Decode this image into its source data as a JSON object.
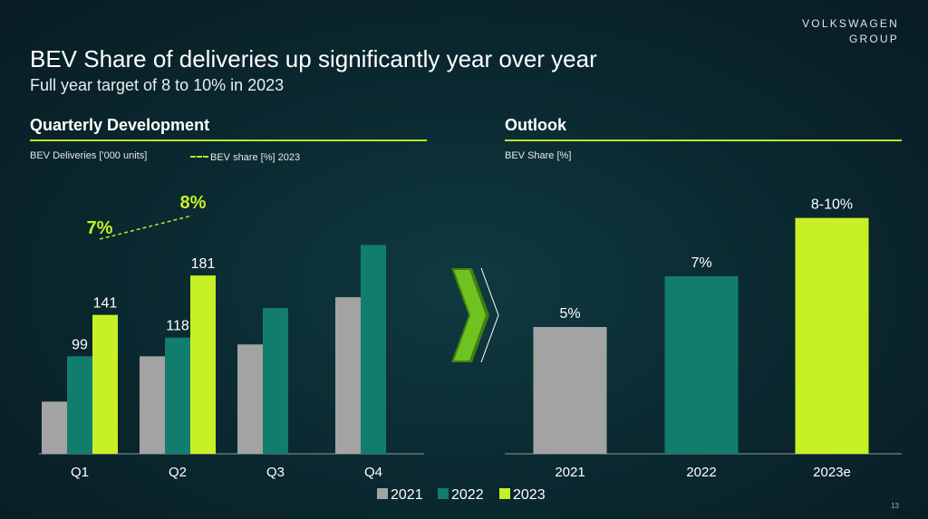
{
  "brand": {
    "line1": "VOLKSWAGEN",
    "line2": "GROUP"
  },
  "title": "BEV Share of deliveries up significantly year over year",
  "subtitle": "Full year target of 8 to 10% in 2023",
  "page_number": "13",
  "colors": {
    "2021": "#a3a3a3",
    "2022": "#127d6c",
    "2023": "#c8f026",
    "accent_rule": "#b8e62a",
    "background": "#0b2a31"
  },
  "chart_data": [
    {
      "type": "bar",
      "title": "Quarterly Development",
      "ylabel": "BEV Deliveries ['000 units]",
      "categories": [
        "Q1",
        "Q2",
        "Q3",
        "Q4"
      ],
      "series": [
        {
          "name": "2021",
          "values": [
            53,
            99,
            111,
            159
          ]
        },
        {
          "name": "2022",
          "values": [
            99,
            118,
            148,
            212
          ]
        },
        {
          "name": "2023",
          "values": [
            141,
            181,
            null,
            null
          ]
        }
      ],
      "data_labels": {
        "2022": [
          "99",
          "118",
          null,
          null
        ],
        "2023": [
          "141",
          "181",
          null,
          null
        ]
      },
      "ylim": [
        0,
        240
      ],
      "line_legend": "BEV share [%] 2023",
      "share_line": {
        "categories": [
          "Q1",
          "Q2"
        ],
        "values": [
          7,
          8
        ],
        "labels": [
          "7%",
          "8%"
        ]
      },
      "grid": false
    },
    {
      "type": "bar",
      "title": "Outlook",
      "ylabel": "BEV Share [%]",
      "categories": [
        "2021",
        "2022",
        "2023e"
      ],
      "values": [
        5,
        7,
        9.3
      ],
      "labels": [
        "5%",
        "7%",
        "8-10%"
      ],
      "ylim": [
        0,
        10
      ],
      "grid": false
    }
  ],
  "legend": [
    "2021",
    "2022",
    "2023"
  ]
}
